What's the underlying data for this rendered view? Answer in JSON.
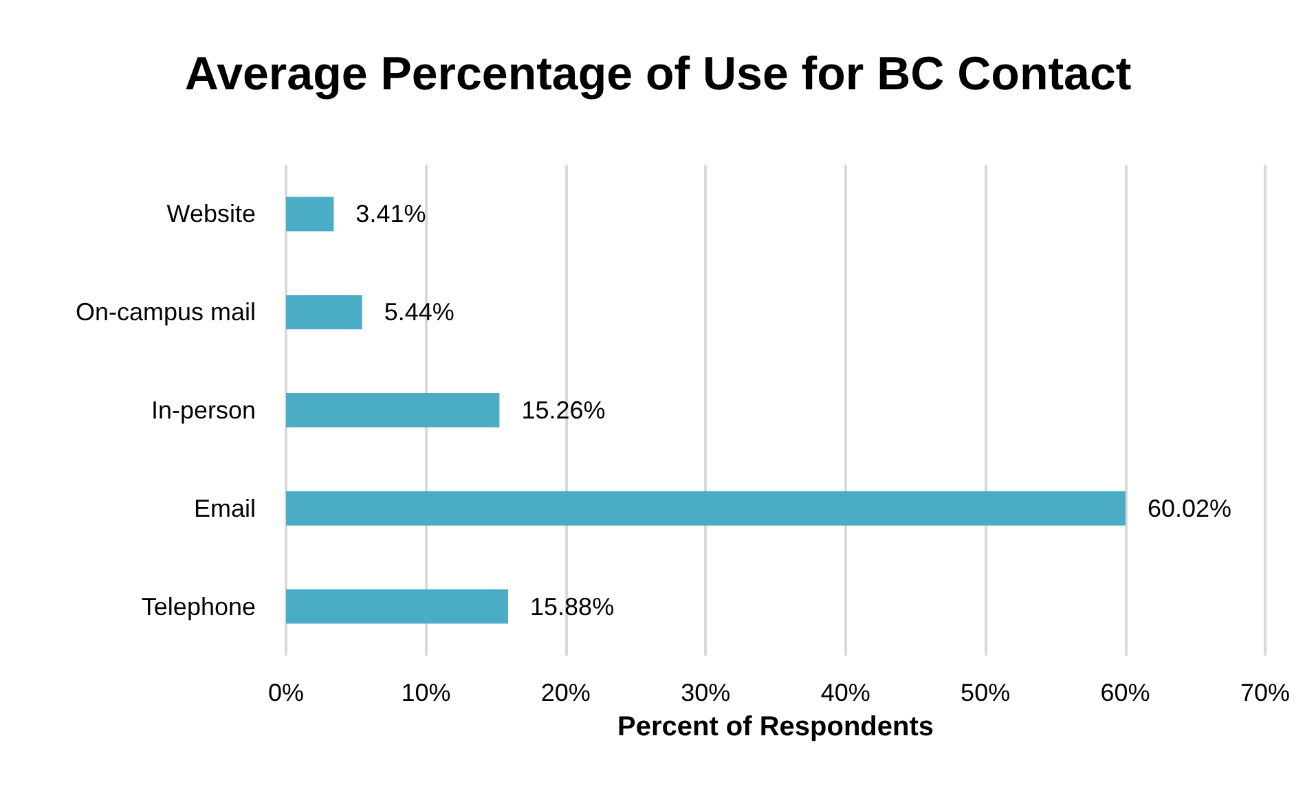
{
  "chart_data": {
    "type": "bar",
    "orientation": "horizontal",
    "title": "Average Percentage of Use for BC Contact",
    "xlabel": "Percent of Respondents",
    "categories": [
      "Website",
      "On-campus mail",
      "In-person",
      "Email",
      "Telephone"
    ],
    "values": [
      3.41,
      5.44,
      15.26,
      60.02,
      15.88
    ],
    "value_labels": [
      "3.41%",
      "5.44%",
      "15.26%",
      "60.02%",
      "15.88%"
    ],
    "color": "#4bacc6",
    "xlim": [
      0,
      70
    ],
    "xticks": [
      {
        "value": 0,
        "label": "0%"
      },
      {
        "value": 10,
        "label": "10%"
      },
      {
        "value": 20,
        "label": "20%"
      },
      {
        "value": 30,
        "label": "30%"
      },
      {
        "value": 40,
        "label": "40%"
      },
      {
        "value": 50,
        "label": "50%"
      },
      {
        "value": 60,
        "label": "60%"
      },
      {
        "value": 70,
        "label": "70%"
      }
    ],
    "grid": "x"
  }
}
